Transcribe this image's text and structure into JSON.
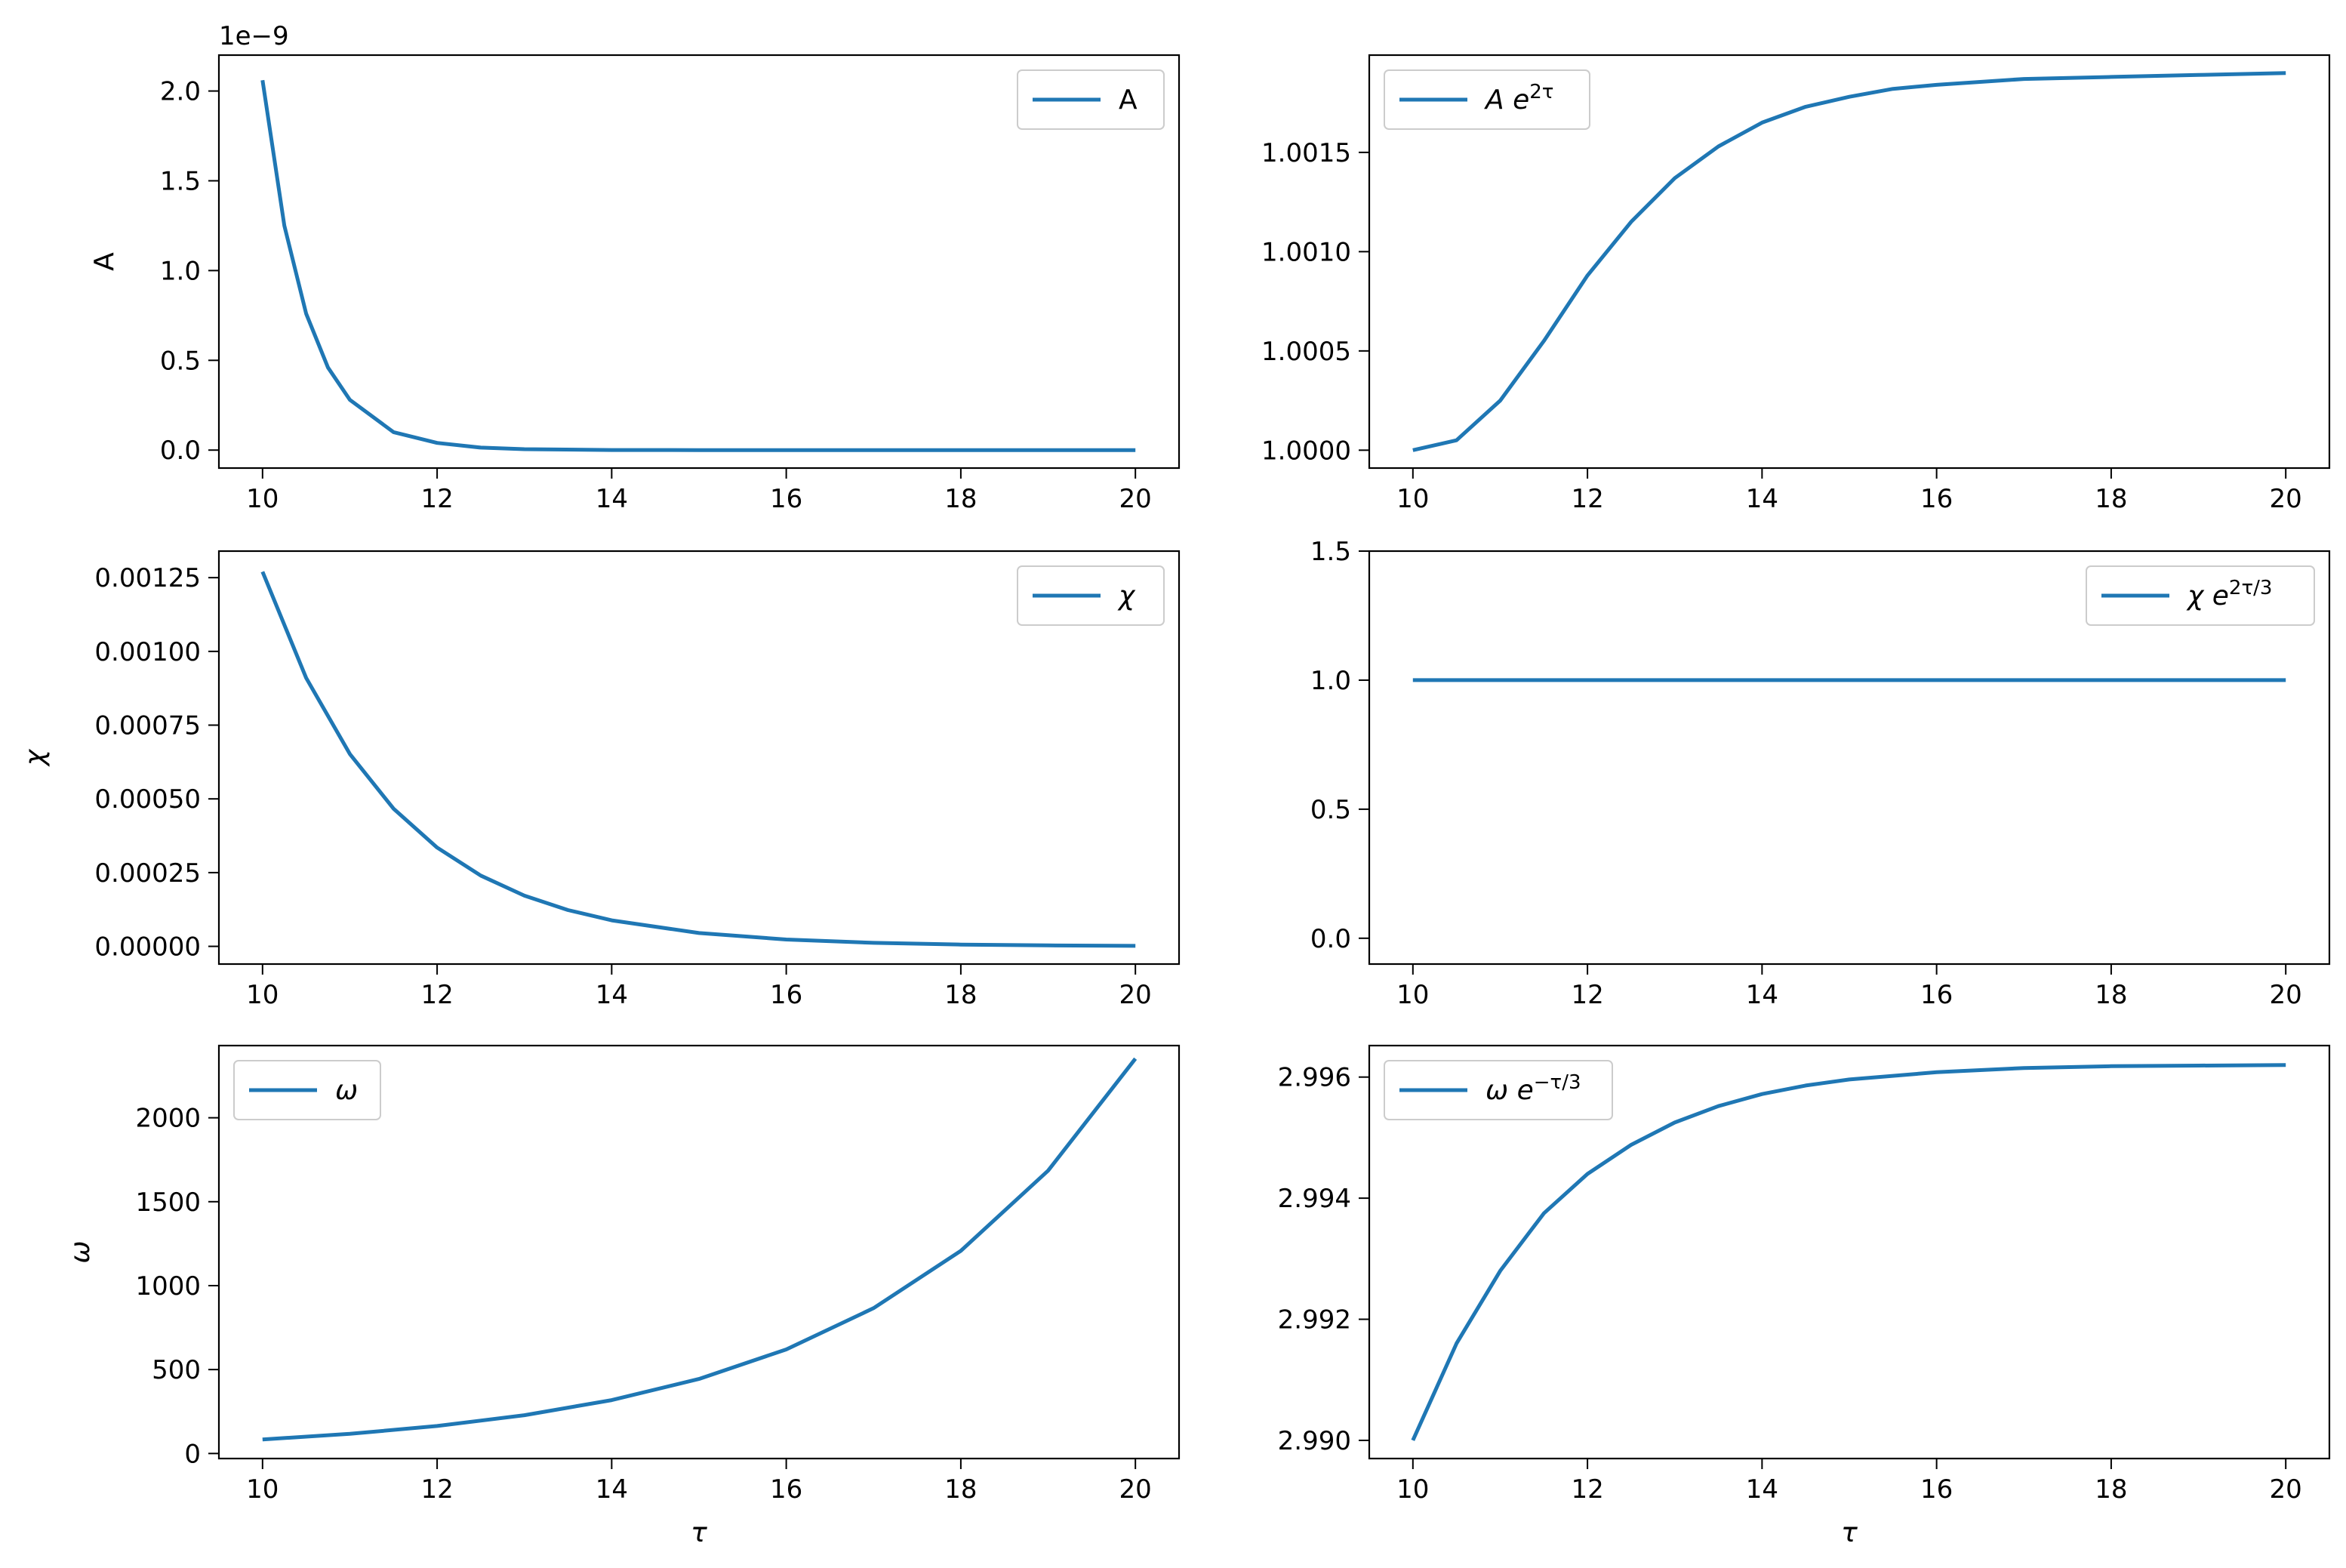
{
  "figure": {
    "background": "#ffffff",
    "line_color": "#1f77b4",
    "axis_color": "#000000"
  },
  "chart_data": [
    {
      "type": "line",
      "ylabel": "A",
      "offset_text": "1e−9",
      "xlim": [
        9.5,
        20.5
      ],
      "ylim": [
        -0.1,
        2.2
      ],
      "xticks": [
        10,
        12,
        14,
        16,
        18,
        20
      ],
      "yticks": [
        0.0,
        0.5,
        1.0,
        1.5,
        2.0
      ],
      "ytick_labels": [
        "0.0",
        "0.5",
        "1.0",
        "1.5",
        "2.0"
      ],
      "legend": {
        "placement": "upper right",
        "text": "A"
      },
      "series": [
        {
          "name": "A",
          "color": "#1f77b4",
          "x": [
            10,
            10.25,
            10.5,
            10.75,
            11,
            11.5,
            12,
            12.5,
            13,
            14,
            15,
            16,
            17,
            18,
            19,
            20
          ],
          "y": [
            2.06,
            1.25,
            0.76,
            0.46,
            0.28,
            0.1,
            0.04,
            0.014,
            0.005,
            0.0007,
            0.0001,
            0,
            0,
            0,
            0,
            0
          ]
        }
      ]
    },
    {
      "type": "line",
      "ylabel": "",
      "xlim": [
        9.5,
        20.5
      ],
      "ylim": [
        0.99991,
        1.00199
      ],
      "xticks": [
        10,
        12,
        14,
        16,
        18,
        20
      ],
      "yticks": [
        1.0,
        1.0005,
        1.001,
        1.0015
      ],
      "ytick_labels": [
        "1.0000",
        "1.0005",
        "1.0010",
        "1.0015"
      ],
      "legend": {
        "placement": "upper left",
        "base": "A e",
        "sup": "2τ"
      },
      "series": [
        {
          "name": "A e^{2τ}",
          "color": "#1f77b4",
          "x": [
            10,
            10.5,
            11,
            11.5,
            12,
            12.5,
            13,
            13.5,
            14,
            14.5,
            15,
            15.5,
            16,
            17,
            18,
            19,
            20
          ],
          "y": [
            1.0,
            1.00005,
            1.00025,
            1.00055,
            1.00088,
            1.00115,
            1.00137,
            1.00153,
            1.00165,
            1.00173,
            1.00178,
            1.00182,
            1.00184,
            1.00187,
            1.00188,
            1.00189,
            1.0019
          ]
        }
      ]
    },
    {
      "type": "line",
      "ylabel": "χ",
      "xlim": [
        9.5,
        20.5
      ],
      "ylim": [
        -6e-05,
        0.00134
      ],
      "xticks": [
        10,
        12,
        14,
        16,
        18,
        20
      ],
      "yticks": [
        0.0,
        0.00025,
        0.0005,
        0.00075,
        0.001,
        0.00125
      ],
      "ytick_labels": [
        "0.00000",
        "0.00025",
        "0.00050",
        "0.00075",
        "0.00100",
        "0.00125"
      ],
      "legend": {
        "placement": "upper right",
        "text": "χ"
      },
      "series": [
        {
          "name": "χ",
          "color": "#1f77b4",
          "x": [
            10,
            10.5,
            11,
            11.5,
            12,
            12.5,
            13,
            13.5,
            14,
            15,
            16,
            17,
            18,
            19,
            20
          ],
          "y": [
            0.00127,
            0.00091,
            0.000652,
            0.000467,
            0.000335,
            0.00024,
            0.000172,
            0.000123,
            8.82e-05,
            4.53e-05,
            2.33e-05,
            1.2e-05,
            6.1e-06,
            3.1e-06,
            1.6e-06
          ]
        }
      ]
    },
    {
      "type": "line",
      "ylabel": "",
      "xlim": [
        9.5,
        20.5
      ],
      "ylim": [
        -0.1,
        1.5
      ],
      "xticks": [
        10,
        12,
        14,
        16,
        18,
        20
      ],
      "yticks": [
        0.0,
        0.5,
        1.0,
        1.5
      ],
      "ytick_labels": [
        "0.0",
        "0.5",
        "1.0",
        "1.5"
      ],
      "legend": {
        "placement": "upper right",
        "base": "χ e",
        "sup": "2τ/3"
      },
      "series": [
        {
          "name": "χ e^{2τ/3}",
          "color": "#1f77b4",
          "x": [
            10,
            20
          ],
          "y": [
            1.0,
            1.0
          ]
        }
      ]
    },
    {
      "type": "line",
      "ylabel": "ω",
      "xlabel": "τ",
      "xlim": [
        9.5,
        20.5
      ],
      "ylim": [
        -30,
        2430
      ],
      "xticks": [
        10,
        12,
        14,
        16,
        18,
        20
      ],
      "yticks": [
        0,
        500,
        1000,
        1500,
        2000
      ],
      "ytick_labels": [
        "0",
        "500",
        "1000",
        "1500",
        "2000"
      ],
      "legend": {
        "placement": "upper left",
        "text": "ω"
      },
      "series": [
        {
          "name": "ω",
          "color": "#1f77b4",
          "x": [
            10,
            11,
            12,
            13,
            14,
            15,
            16,
            17,
            18,
            19,
            20
          ],
          "y": [
            84,
            117,
            164,
            228,
            318,
            444,
            620,
            866,
            1207,
            1685,
            2352
          ]
        }
      ]
    },
    {
      "type": "line",
      "ylabel": "",
      "xlabel": "τ",
      "xlim": [
        9.5,
        20.5
      ],
      "ylim": [
        2.9897,
        2.99652
      ],
      "xticks": [
        10,
        12,
        14,
        16,
        18,
        20
      ],
      "yticks": [
        2.99,
        2.992,
        2.994,
        2.996
      ],
      "ytick_labels": [
        "2.990",
        "2.992",
        "2.994",
        "2.996"
      ],
      "legend": {
        "placement": "upper left",
        "base": "ω e",
        "sup": "−τ/3"
      },
      "series": [
        {
          "name": "ω e^{−τ/3}",
          "color": "#1f77b4",
          "x": [
            10,
            10.5,
            11,
            11.5,
            12,
            12.5,
            13,
            13.5,
            14,
            14.5,
            15,
            16,
            17,
            18,
            19,
            20
          ],
          "y": [
            2.99,
            2.9916,
            2.9928,
            2.99375,
            2.9944,
            2.99488,
            2.99525,
            2.99552,
            2.99572,
            2.99586,
            2.99596,
            2.99608,
            2.99615,
            2.99618,
            2.99619,
            2.9962
          ]
        }
      ]
    }
  ]
}
